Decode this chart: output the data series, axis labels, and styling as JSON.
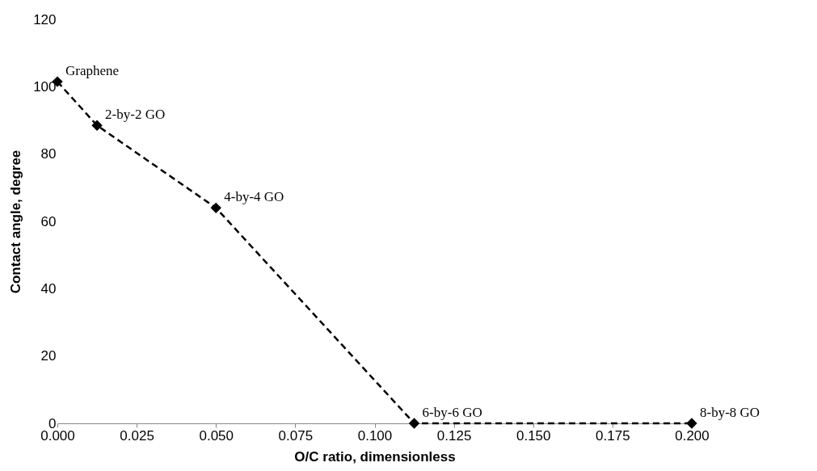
{
  "chart_data": {
    "type": "line",
    "xlabel": "O/C ratio, dimensionless",
    "ylabel": "Contact angle, degree",
    "x": [
      0,
      0.0125,
      0.05,
      0.1125,
      0.2
    ],
    "series": [
      {
        "color": "#000000",
        "values": [
          101.5,
          88.5,
          64,
          0,
          0
        ]
      }
    ],
    "xlim": [
      0,
      0.2
    ],
    "xticks": [
      {
        "value": 0,
        "label": "0.000"
      },
      {
        "value": 0.025,
        "label": "0.025"
      },
      {
        "value": 0.05,
        "label": "0.050"
      },
      {
        "value": 0.075,
        "label": "0.075"
      },
      {
        "value": 0.1,
        "label": "0.100"
      },
      {
        "value": 0.125,
        "label": "0.125"
      },
      {
        "value": 0.15,
        "label": "0.150"
      },
      {
        "value": 0.175,
        "label": "0.175"
      },
      {
        "value": 0.2,
        "label": "0.200"
      }
    ],
    "ylim": [
      0,
      120
    ],
    "yticks": [
      0,
      20,
      40,
      60,
      80,
      100,
      120
    ],
    "grid": false,
    "marker": "diamond",
    "line_style": "dashed",
    "annotations": [
      {
        "text": "Graphene",
        "x": 0,
        "y": 101.5
      },
      {
        "text": "2-by-2 GO",
        "x": 0.0125,
        "y": 88.5
      },
      {
        "text": "4-by-4 GO",
        "x": 0.05,
        "y": 64
      },
      {
        "text": "6-by-6 GO",
        "x": 0.1125,
        "y": 0
      },
      {
        "text": "8-by-8 GO",
        "x": 0.2,
        "y": 0
      }
    ]
  }
}
